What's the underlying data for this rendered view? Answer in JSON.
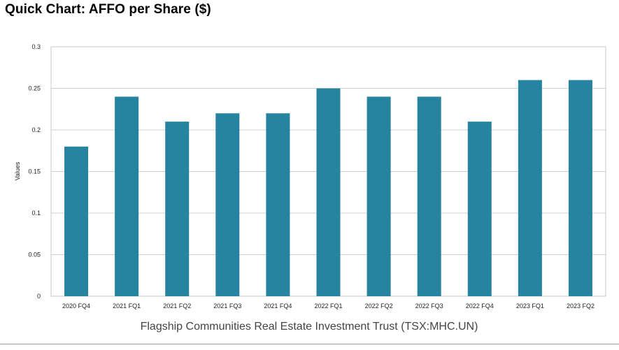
{
  "header": {
    "title": "Quick Chart: AFFO per Share ($)"
  },
  "chart_data": {
    "type": "bar",
    "title": "Quick Chart: AFFO per Share ($)",
    "subtitle": "Flagship Communities Real Estate Investment Trust (TSX:MHC.UN)",
    "xlabel": "",
    "ylabel": "Values",
    "ylim": [
      0,
      0.3
    ],
    "yticks": [
      "0",
      "0.05",
      "0.1",
      "0.15",
      "0.2",
      "0.25",
      "0.3"
    ],
    "ytick_values": [
      0,
      0.05,
      0.1,
      0.15,
      0.2,
      0.25,
      0.3
    ],
    "grid": true,
    "bar_color": "#2784A0",
    "categories": [
      "2020 FQ4",
      "2021 FQ1",
      "2021 FQ2",
      "2021 FQ3",
      "2021 FQ4",
      "2022 FQ1",
      "2022 FQ2",
      "2022 FQ3",
      "2022 FQ4",
      "2023 FQ1",
      "2023 FQ2"
    ],
    "values": [
      0.18,
      0.24,
      0.21,
      0.22,
      0.22,
      0.25,
      0.24,
      0.24,
      0.21,
      0.26,
      0.26
    ]
  }
}
